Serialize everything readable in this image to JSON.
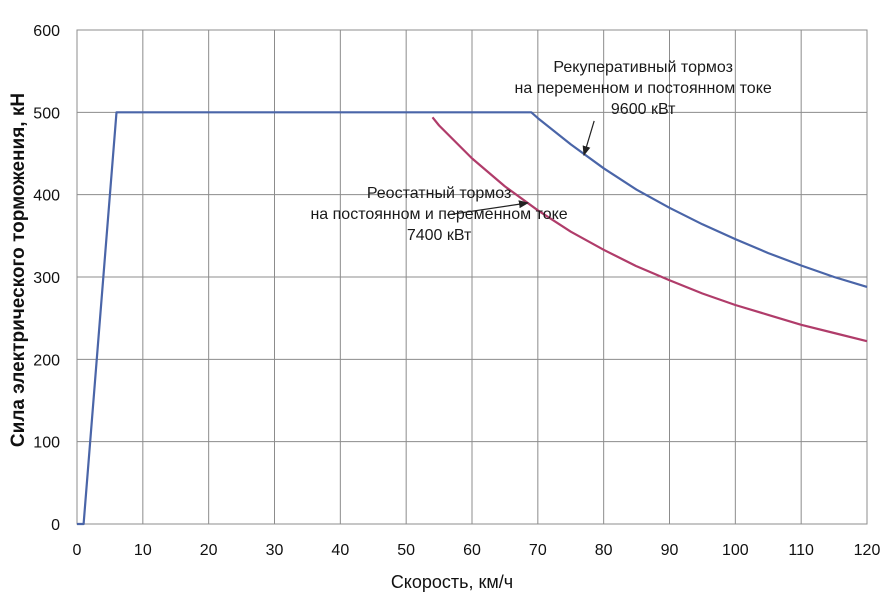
{
  "chart_data": {
    "type": "line",
    "title": "",
    "xlabel": "Скорость, км/ч",
    "ylabel": "Сила электрического торможения, кН",
    "xlim": [
      0,
      120
    ],
    "ylim": [
      0,
      600
    ],
    "x_ticks": [
      0,
      10,
      20,
      30,
      40,
      50,
      60,
      70,
      80,
      90,
      100,
      110,
      120
    ],
    "y_ticks": [
      0,
      100,
      200,
      300,
      400,
      500,
      600
    ],
    "grid": true,
    "legend": "none",
    "series": [
      {
        "color": "#4a65a8",
        "x": [
          0,
          1,
          6,
          10,
          20,
          30,
          40,
          50,
          60,
          69,
          70,
          75,
          80,
          85,
          90,
          95,
          100,
          105,
          110,
          115,
          120
        ],
        "y": [
          0,
          0,
          500,
          500,
          500,
          500,
          500,
          500,
          500,
          500,
          493,
          461,
          432,
          406,
          384,
          364,
          346,
          329,
          314,
          300,
          288
        ]
      },
      {
        "color": "#b03c6a",
        "x": [
          54,
          55,
          60,
          65,
          70,
          75,
          80,
          85,
          90,
          95,
          100,
          105,
          110,
          115,
          120
        ],
        "y": [
          494,
          484,
          444,
          410,
          381,
          355,
          333,
          313,
          296,
          280,
          266,
          254,
          242,
          232,
          222
        ]
      }
    ],
    "annotations": [
      {
        "lines": [
          "Рекуперативный тормоз",
          "на переменном и постоянном токе",
          "9600 кВт"
        ],
        "point": [
          77,
          448
        ],
        "text_anchor_point": [
          86,
          498
        ]
      },
      {
        "lines": [
          "Реостатный тормоз",
          "на постоянном и переменном токе",
          "7400 кВт"
        ],
        "point": [
          68.5,
          390
        ],
        "text_anchor_point": [
          55,
          345
        ]
      }
    ]
  }
}
